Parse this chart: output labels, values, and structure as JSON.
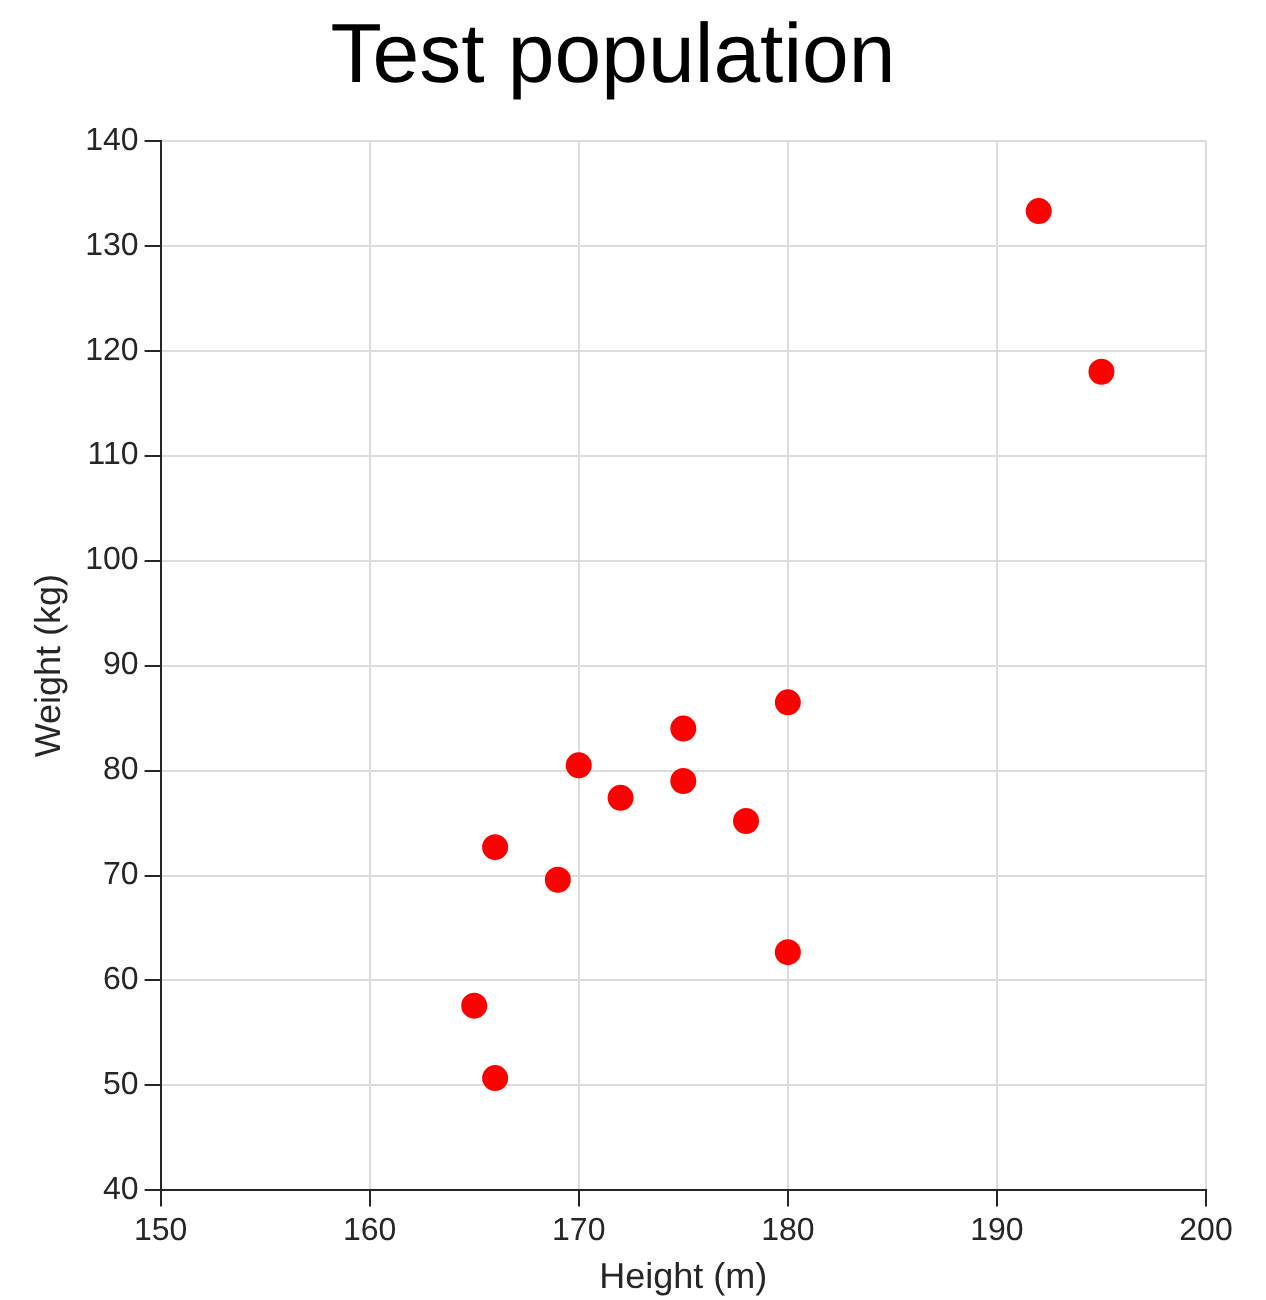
{
  "chart_data": {
    "type": "scatter",
    "title": "Test population",
    "xlabel": "Height (m)",
    "ylabel": "Weight (kg)",
    "series": [
      {
        "color": "#ff0000",
        "x": [
          192,
          195,
          180,
          175,
          170,
          172,
          175,
          178,
          166,
          169,
          180,
          165,
          166
        ],
        "values": [
          133.3,
          118,
          86.5,
          84,
          80.5,
          77.4,
          79,
          75.2,
          72.7,
          69.6,
          62.7,
          57.6,
          50.7
        ]
      }
    ],
    "xlim": [
      150,
      200
    ],
    "xticks": [
      150,
      160,
      170,
      180,
      190,
      200
    ],
    "ylim": [
      40,
      140
    ],
    "yticks": [
      40,
      50,
      60,
      70,
      80,
      90,
      100,
      110,
      120,
      130,
      140
    ],
    "grid": true,
    "marker": "circle",
    "legend": false
  }
}
